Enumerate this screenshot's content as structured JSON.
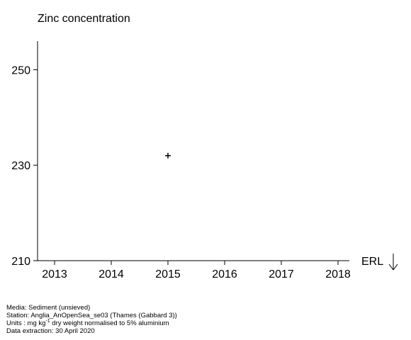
{
  "chart_data": {
    "type": "scatter",
    "title": "Zinc concentration",
    "xlabel": "",
    "ylabel": "",
    "x_ticks": [
      2013,
      2014,
      2015,
      2016,
      2017,
      2018
    ],
    "y_ticks": [
      210,
      230,
      250
    ],
    "xlim": [
      2012.7,
      2018.2
    ],
    "ylim": [
      210,
      256
    ],
    "marker": "+",
    "points": [
      {
        "x": 2015,
        "y": 232
      }
    ],
    "reference_line": {
      "label": "ERL",
      "direction": "below axis (off scale)"
    },
    "grid": false
  },
  "metadata": {
    "media": "Media: Sediment (unsieved)",
    "station": "Station: Anglia_AnOpenSea_se03 (Thames (Gabbard 3))",
    "units_prefix": "Units : mg kg",
    "units_sup": "-1",
    "units_suffix": " dry weight normalised to 5% aluminium",
    "extraction": "Data extraction: 30 April 2020"
  }
}
